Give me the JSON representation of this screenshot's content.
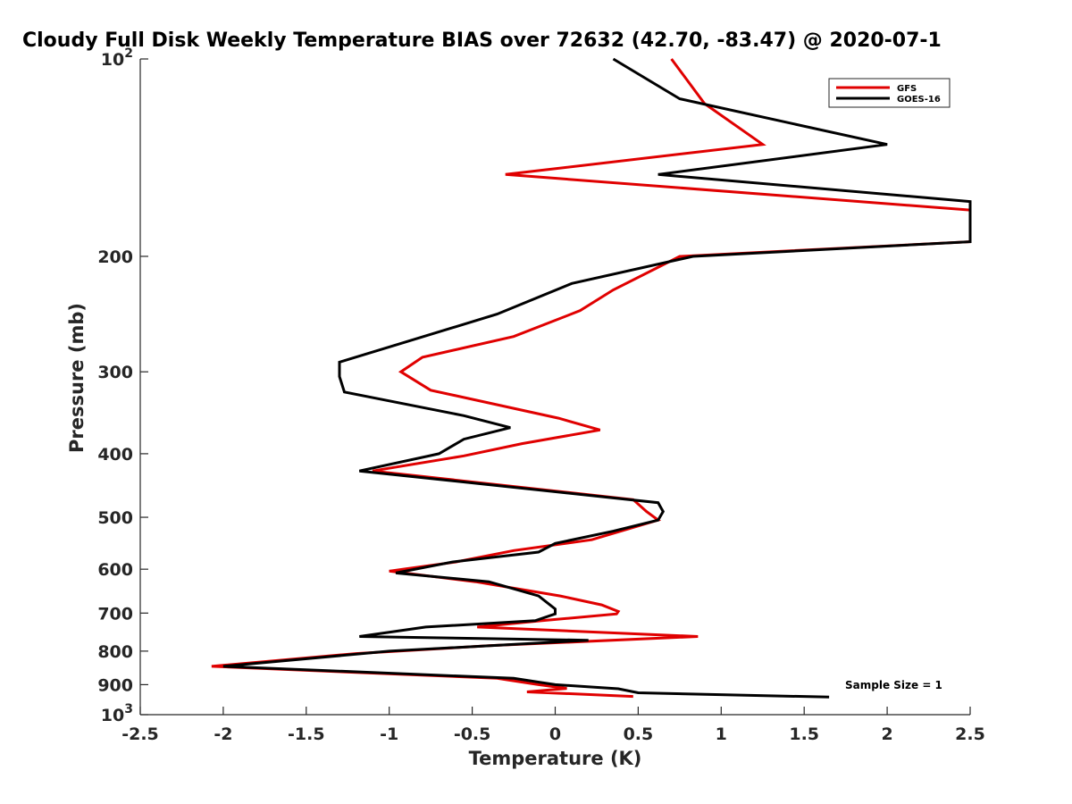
{
  "chart_data": {
    "type": "line",
    "title": "Cloudy Full Disk Weekly Temperature BIAS over 72632 (42.70, -83.47) @ 2020-07-1",
    "xlabel": "Temperature (K)",
    "ylabel": "Pressure (mb)",
    "xlim": [
      -2.5,
      2.5
    ],
    "ylim": [
      1000,
      100
    ],
    "y_scale": "log",
    "y_reversed": true,
    "x_ticks": [
      "-2.5",
      "-2",
      "-1.5",
      "-1",
      "-0.5",
      "0",
      "0.5",
      "1",
      "1.5",
      "2",
      "2.5"
    ],
    "y_ticks": [
      {
        "value": 100,
        "base": "10",
        "exp": "2"
      },
      {
        "value": 200,
        "label": "200"
      },
      {
        "value": 300,
        "label": "300"
      },
      {
        "value": 400,
        "label": "400"
      },
      {
        "value": 500,
        "label": "500"
      },
      {
        "value": 600,
        "label": "600"
      },
      {
        "value": 700,
        "label": "700"
      },
      {
        "value": 800,
        "label": "800"
      },
      {
        "value": 900,
        "label": "900"
      },
      {
        "value": 1000,
        "base": "10",
        "exp": "3"
      }
    ],
    "legend_position": "top-right",
    "series": [
      {
        "name": "GFS",
        "color": "#e00000",
        "points": [
          [
            0.7,
            100
          ],
          [
            0.9,
            117
          ],
          [
            1.25,
            135
          ],
          [
            -0.3,
            150
          ],
          [
            2.5,
            170
          ],
          [
            2.5,
            190
          ],
          [
            0.75,
            200
          ],
          [
            0.35,
            225
          ],
          [
            0.15,
            242
          ],
          [
            -0.25,
            265
          ],
          [
            -0.8,
            285
          ],
          [
            -0.93,
            300
          ],
          [
            -0.75,
            320
          ],
          [
            0.02,
            353
          ],
          [
            0.27,
            368
          ],
          [
            -0.2,
            386
          ],
          [
            -0.55,
            403
          ],
          [
            -1.1,
            425
          ],
          [
            0.47,
            470
          ],
          [
            0.55,
            490
          ],
          [
            0.62,
            505
          ],
          [
            0.22,
            541
          ],
          [
            -0.25,
            562
          ],
          [
            -0.6,
            585
          ],
          [
            -1.0,
            604
          ],
          [
            -0.48,
            627
          ],
          [
            0.03,
            659
          ],
          [
            0.28,
            680
          ],
          [
            0.38,
            696
          ],
          [
            0.37,
            702
          ],
          [
            -0.08,
            719
          ],
          [
            -0.47,
            735
          ],
          [
            0.86,
            760
          ],
          [
            -0.4,
            785
          ],
          [
            -1.2,
            807
          ],
          [
            -2.07,
            844
          ],
          [
            -0.35,
            880
          ],
          [
            -0.1,
            900
          ],
          [
            0.07,
            912
          ],
          [
            -0.17,
            923
          ],
          [
            0.47,
            938
          ]
        ]
      },
      {
        "name": "GOES-16",
        "color": "#000000",
        "points": [
          [
            0.35,
            100
          ],
          [
            0.75,
            115
          ],
          [
            2.0,
            135
          ],
          [
            0.62,
            150
          ],
          [
            2.5,
            165
          ],
          [
            2.5,
            190
          ],
          [
            0.83,
            200
          ],
          [
            0.1,
            220
          ],
          [
            -0.35,
            245
          ],
          [
            -1.3,
            290
          ],
          [
            -1.3,
            305
          ],
          [
            -1.27,
            322
          ],
          [
            -0.55,
            350
          ],
          [
            -0.27,
            365
          ],
          [
            -0.55,
            380
          ],
          [
            -0.7,
            400
          ],
          [
            -1.18,
            425
          ],
          [
            0.62,
            475
          ],
          [
            0.65,
            490
          ],
          [
            0.62,
            505
          ],
          [
            0.35,
            525
          ],
          [
            0.0,
            548
          ],
          [
            -0.1,
            565
          ],
          [
            -0.62,
            585
          ],
          [
            -0.96,
            608
          ],
          [
            -0.4,
            627
          ],
          [
            -0.1,
            659
          ],
          [
            0.0,
            690
          ],
          [
            0.0,
            702
          ],
          [
            -0.12,
            719
          ],
          [
            -0.78,
            735
          ],
          [
            -1.18,
            760
          ],
          [
            0.2,
            770
          ],
          [
            -1.0,
            800
          ],
          [
            -2.0,
            844
          ],
          [
            -0.25,
            880
          ],
          [
            -0.0,
            900
          ],
          [
            0.38,
            913
          ],
          [
            0.5,
            926
          ],
          [
            1.65,
            940
          ]
        ]
      }
    ],
    "annotation": "Sample Size = 1"
  }
}
